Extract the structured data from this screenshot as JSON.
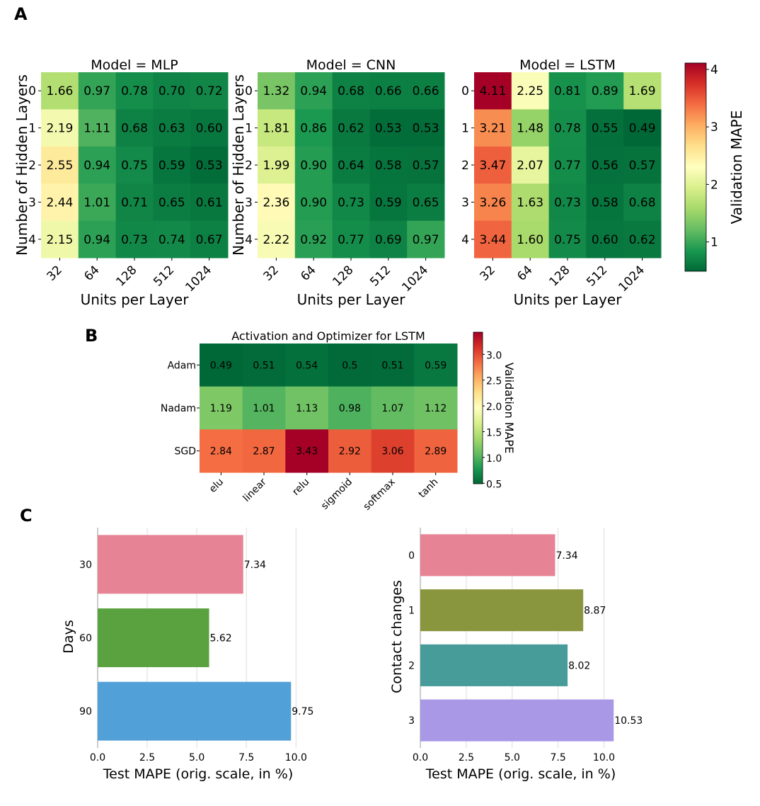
{
  "panel_labels": {
    "a": "A",
    "b": "B",
    "c": "C"
  },
  "colormap": [
    "#006837",
    "#1a9850",
    "#66bd63",
    "#a6d96a",
    "#d9ef8b",
    "#ffffbf",
    "#fee08b",
    "#fdae61",
    "#f46d43",
    "#d73027",
    "#a50026"
  ],
  "chart_data": [
    {
      "id": "A-MLP",
      "type": "heatmap",
      "title": "Model = MLP",
      "xlabel": "Units per Layer",
      "ylabel": "Number of Hidden Layers",
      "x_categories": [
        "32",
        "64",
        "128",
        "512",
        "1024"
      ],
      "y_categories": [
        "0",
        "1",
        "2",
        "3",
        "4"
      ],
      "values": [
        [
          1.66,
          0.97,
          0.78,
          0.7,
          0.72
        ],
        [
          2.19,
          1.11,
          0.68,
          0.63,
          0.6
        ],
        [
          2.55,
          0.94,
          0.75,
          0.59,
          0.53
        ],
        [
          2.44,
          1.01,
          0.71,
          0.65,
          0.61
        ],
        [
          2.15,
          0.94,
          0.73,
          0.74,
          0.67
        ]
      ],
      "display": [
        [
          "1.66",
          "0.97",
          "0.78",
          "0.70",
          "0.72"
        ],
        [
          "2.19",
          "1.11",
          "0.68",
          "0.63",
          "0.60"
        ],
        [
          "2.55",
          "0.94",
          "0.75",
          "0.59",
          "0.53"
        ],
        [
          "2.44",
          "1.01",
          "0.71",
          "0.65",
          "0.61"
        ],
        [
          "2.15",
          "0.94",
          "0.73",
          "0.74",
          "0.67"
        ]
      ],
      "vmin": 0.49,
      "vmax": 4.11
    },
    {
      "id": "A-CNN",
      "type": "heatmap",
      "title": "Model = CNN",
      "xlabel": "Units per Layer",
      "ylabel": "Number of Hidden Layers",
      "x_categories": [
        "32",
        "64",
        "128",
        "512",
        "1024"
      ],
      "y_categories": [
        "0",
        "1",
        "2",
        "3",
        "4"
      ],
      "values": [
        [
          1.32,
          0.94,
          0.68,
          0.66,
          0.66
        ],
        [
          1.81,
          0.86,
          0.62,
          0.53,
          0.53
        ],
        [
          1.99,
          0.9,
          0.64,
          0.58,
          0.57
        ],
        [
          2.36,
          0.9,
          0.73,
          0.59,
          0.65
        ],
        [
          2.22,
          0.92,
          0.77,
          0.69,
          0.97
        ]
      ],
      "display": [
        [
          "1.32",
          "0.94",
          "0.68",
          "0.66",
          "0.66"
        ],
        [
          "1.81",
          "0.86",
          "0.62",
          "0.53",
          "0.53"
        ],
        [
          "1.99",
          "0.90",
          "0.64",
          "0.58",
          "0.57"
        ],
        [
          "2.36",
          "0.90",
          "0.73",
          "0.59",
          "0.65"
        ],
        [
          "2.22",
          "0.92",
          "0.77",
          "0.69",
          "0.97"
        ]
      ],
      "vmin": 0.49,
      "vmax": 4.11
    },
    {
      "id": "A-LSTM",
      "type": "heatmap",
      "title": "Model = LSTM",
      "xlabel": "Units per Layer",
      "ylabel": "Number of Hidden Layers",
      "x_categories": [
        "32",
        "64",
        "128",
        "512",
        "1024"
      ],
      "y_categories": [
        "0",
        "1",
        "2",
        "3",
        "4"
      ],
      "values": [
        [
          4.11,
          2.25,
          0.81,
          0.89,
          1.69
        ],
        [
          3.21,
          1.48,
          0.78,
          0.55,
          0.49
        ],
        [
          3.47,
          2.07,
          0.77,
          0.56,
          0.57
        ],
        [
          3.26,
          1.63,
          0.73,
          0.58,
          0.68
        ],
        [
          3.44,
          1.6,
          0.75,
          0.6,
          0.62
        ]
      ],
      "display": [
        [
          "4.11",
          "2.25",
          "0.81",
          "0.89",
          "1.69"
        ],
        [
          "3.21",
          "1.48",
          "0.78",
          "0.55",
          "0.49"
        ],
        [
          "3.47",
          "2.07",
          "0.77",
          "0.56",
          "0.57"
        ],
        [
          "3.26",
          "1.63",
          "0.73",
          "0.58",
          "0.68"
        ],
        [
          "3.44",
          "1.60",
          "0.75",
          "0.60",
          "0.62"
        ]
      ],
      "vmin": 0.49,
      "vmax": 4.11,
      "colorbar": {
        "label": "Validation MAPE",
        "ticks": [
          1,
          2,
          3,
          4
        ],
        "tick_labels": [
          "1",
          "2",
          "3",
          "4"
        ]
      }
    },
    {
      "id": "B",
      "type": "heatmap",
      "title": "Activation and Optimizer for LSTM",
      "x_categories": [
        "elu",
        "linear",
        "relu",
        "sigmoid",
        "softmax",
        "tanh"
      ],
      "y_categories": [
        "Adam",
        "Nadam",
        "SGD"
      ],
      "values": [
        [
          0.49,
          0.51,
          0.54,
          0.5,
          0.51,
          0.59
        ],
        [
          1.19,
          1.01,
          1.13,
          0.98,
          1.07,
          1.12
        ],
        [
          2.84,
          2.87,
          3.43,
          2.92,
          3.06,
          2.89
        ]
      ],
      "display": [
        [
          "0.49",
          "0.51",
          "0.54",
          "0.5",
          "0.51",
          "0.59"
        ],
        [
          "1.19",
          "1.01",
          "1.13",
          "0.98",
          "1.07",
          "1.12"
        ],
        [
          "2.84",
          "2.87",
          "3.43",
          "2.92",
          "3.06",
          "2.89"
        ]
      ],
      "vmin": 0.49,
      "vmax": 3.43,
      "colorbar": {
        "label": "Validation MAPE",
        "ticks": [
          0.5,
          1.0,
          1.5,
          2.0,
          2.5,
          3.0
        ],
        "tick_labels": [
          "0.5",
          "1.0",
          "1.5",
          "2.0",
          "2.5",
          "3.0"
        ]
      }
    },
    {
      "id": "C-days",
      "type": "bar",
      "orientation": "horizontal",
      "xlabel": "Test MAPE (orig. scale, in %)",
      "ylabel": "Days",
      "categories": [
        "30",
        "60",
        "90"
      ],
      "values": [
        7.34,
        5.62,
        9.75
      ],
      "value_labels": [
        "7.34",
        "5.62",
        "9.75"
      ],
      "colors": [
        "#e68394",
        "#5aa23f",
        "#52a0d8"
      ],
      "xlim": [
        0,
        10.24
      ],
      "x_ticks": [
        0,
        2.5,
        5,
        7.5,
        10
      ],
      "x_tick_labels": [
        "0.0",
        "2.5",
        "5.0",
        "7.5",
        "10.0"
      ]
    },
    {
      "id": "C-contact",
      "type": "bar",
      "orientation": "horizontal",
      "xlabel": "Test MAPE (orig. scale, in %)",
      "ylabel": "Contact changes",
      "categories": [
        "0",
        "1",
        "2",
        "3"
      ],
      "values": [
        7.34,
        8.87,
        8.02,
        10.53
      ],
      "value_labels": [
        "7.34",
        "8.87",
        "8.02",
        "10.53"
      ],
      "colors": [
        "#e68394",
        "#8a963e",
        "#479c99",
        "#a998e6"
      ],
      "xlim": [
        0,
        11.06
      ],
      "x_ticks": [
        0,
        2.5,
        5,
        7.5,
        10
      ],
      "x_tick_labels": [
        "0.0",
        "2.5",
        "5.0",
        "7.5",
        "10.0"
      ]
    }
  ]
}
